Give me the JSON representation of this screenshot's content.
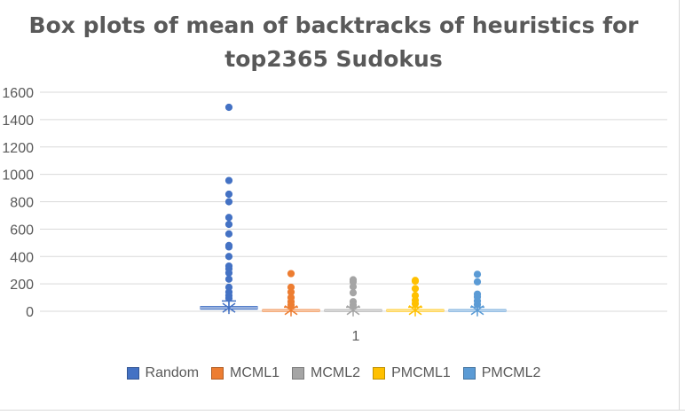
{
  "chart_data": {
    "type": "box",
    "title": "Box plots of mean of backtracks of heuristics for top2365 Sudokus",
    "title_lines": [
      "Box plots of mean of backtracks of heuristics for",
      "top2365 Sudokus"
    ],
    "xlabel": "",
    "ylabel": "",
    "categories": [
      "1"
    ],
    "ylim": [
      0,
      1600
    ],
    "yticks": [
      0,
      200,
      400,
      600,
      800,
      1000,
      1200,
      1400,
      1600
    ],
    "ytick_labels": [
      "0",
      "200",
      "400",
      "600",
      "800",
      "1000",
      "1200",
      "1400",
      "1600"
    ],
    "grid": true,
    "legend_position": "bottom",
    "series": [
      {
        "name": "Random",
        "color": "#4472c4",
        "q1": 15,
        "median": 25,
        "q3": 35,
        "mean": 25,
        "whisker_low": 0,
        "whisker_high": 75,
        "outliers": [
          1490,
          955,
          855,
          800,
          685,
          635,
          565,
          480,
          470,
          400,
          330,
          310,
          280,
          235,
          175,
          140,
          115,
          95
        ]
      },
      {
        "name": "MCML1",
        "color": "#ed7d31",
        "q1": 2,
        "median": 6,
        "q3": 12,
        "mean": 8,
        "whisker_low": 0,
        "whisker_high": 30,
        "outliers": [
          275,
          175,
          140,
          100,
          70,
          45
        ]
      },
      {
        "name": "MCML2",
        "color": "#a5a5a5",
        "q1": 2,
        "median": 6,
        "q3": 12,
        "mean": 8,
        "whisker_low": 0,
        "whisker_high": 30,
        "outliers": [
          230,
          215,
          180,
          135,
          70,
          45
        ]
      },
      {
        "name": "PMCML1",
        "color": "#ffc000",
        "q1": 2,
        "median": 6,
        "q3": 12,
        "mean": 8,
        "whisker_low": 0,
        "whisker_high": 30,
        "outliers": [
          225,
          220,
          165,
          115,
          80,
          55
        ]
      },
      {
        "name": "PMCML2",
        "color": "#5b9bd5",
        "q1": 2,
        "median": 6,
        "q3": 12,
        "mean": 8,
        "whisker_low": 0,
        "whisker_high": 30,
        "outliers": [
          270,
          215,
          125,
          105,
          75,
          50
        ]
      }
    ]
  }
}
